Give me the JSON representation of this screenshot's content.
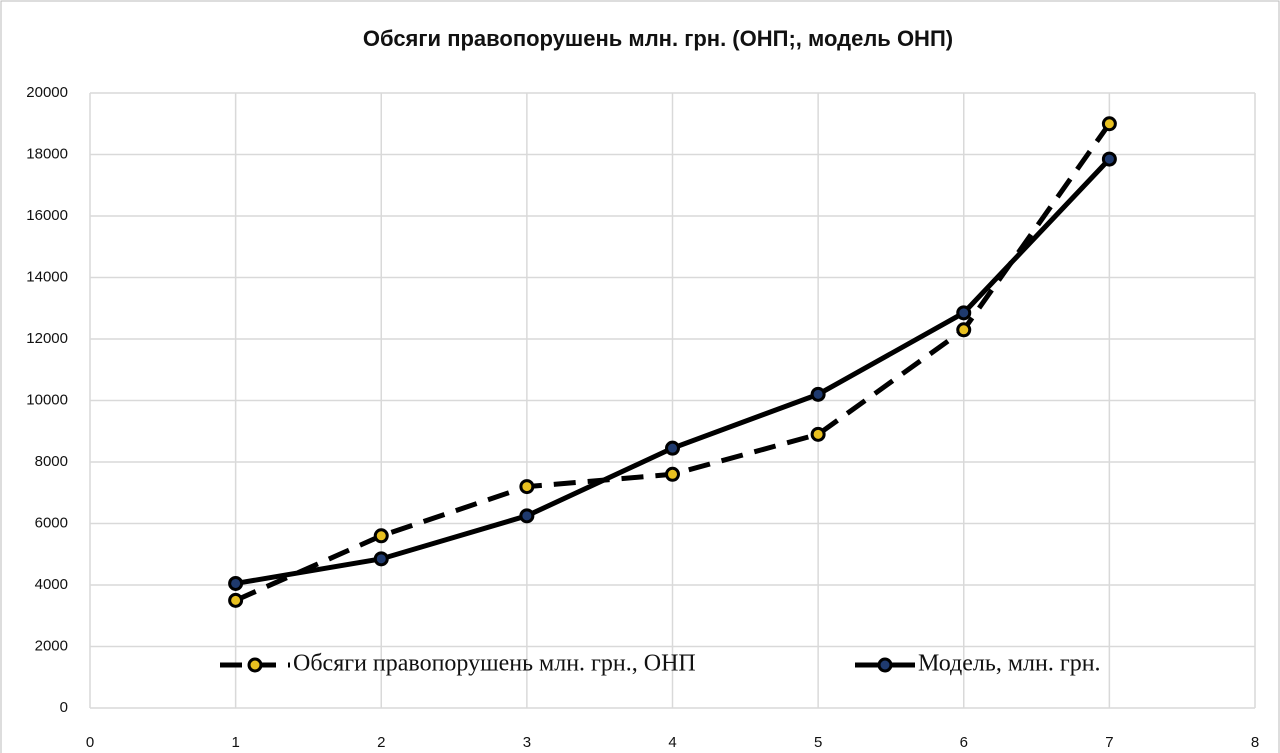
{
  "chart_data": {
    "type": "line",
    "title": "Обсяги правопорушень млн. грн. (ОНП;, модель ОНП)",
    "series": [
      {
        "name": "Обсяги правопорушень млн. грн., ОНП",
        "color": "#000000",
        "line_style": "dashed",
        "marker_color": "#e8c020",
        "x": [
          1,
          2,
          3,
          4,
          5,
          6,
          7
        ],
        "values": [
          3500,
          5600,
          7200,
          7600,
          8900,
          12300,
          19000
        ]
      },
      {
        "name": "Модель, млн. грн.",
        "color": "#000000",
        "line_style": "solid",
        "marker_color": "#1f3a6e",
        "x": [
          1,
          2,
          3,
          4,
          5,
          6,
          7
        ],
        "values": [
          4050,
          4850,
          6250,
          8450,
          10200,
          12850,
          17850
        ]
      }
    ],
    "xlim": [
      0,
      8
    ],
    "xticks": [
      0,
      1,
      2,
      3,
      4,
      5,
      6,
      7,
      8
    ],
    "ylim": [
      0,
      20000
    ],
    "yticks": [
      0,
      2000,
      4000,
      6000,
      8000,
      10000,
      12000,
      14000,
      16000,
      18000,
      20000
    ],
    "grid": true,
    "legend": "bottom"
  }
}
